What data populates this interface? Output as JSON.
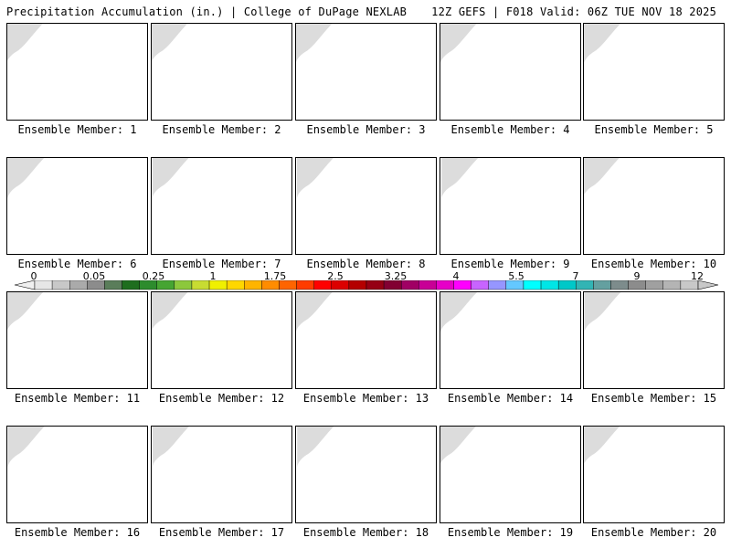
{
  "header": {
    "title_left": "Precipitation Accumulation (in.) | College of DuPage NEXLAB",
    "title_right": "12Z GEFS | F018 Valid: 06Z TUE NOV 18 2025"
  },
  "colors": {
    "land": "#ffffff",
    "grey_light": "#dcdcdc",
    "grey_mid": "#b4b4b4",
    "grey_dark": "#8c8c8c",
    "green_dark": "#1e7d1e",
    "green": "#46a532",
    "green_light": "#8cc83c",
    "yellow": "#f0f000",
    "borders": "#000000"
  },
  "colorbar": {
    "ticks": [
      "0",
      "0.05",
      "0.25",
      "1",
      "1.75",
      "2.5",
      "3.25",
      "4",
      "5.5",
      "7",
      "9",
      "12"
    ],
    "bins": [
      "#e6e6e6",
      "#c8c8c8",
      "#aaaaaa",
      "#8c8c8c",
      "#5a7d5a",
      "#1e6e1e",
      "#2d8c2d",
      "#46a532",
      "#8cc83c",
      "#c8dc32",
      "#f0f000",
      "#ffd700",
      "#ffb400",
      "#ff8c00",
      "#ff6400",
      "#ff3c00",
      "#ff0000",
      "#dc0000",
      "#b40000",
      "#960014",
      "#820032",
      "#a00064",
      "#c80096",
      "#e600c8",
      "#ff00ff",
      "#c864ff",
      "#9696ff",
      "#64c8ff",
      "#00ffff",
      "#00e6e6",
      "#00c8c8",
      "#32b4b4",
      "#64a0a0",
      "#7d8c8c",
      "#8c8c8c",
      "#a0a0a0",
      "#b4b4b4",
      "#c8c8c8"
    ]
  },
  "panels": [
    {
      "label": "Ensemble Member: 1"
    },
    {
      "label": "Ensemble Member: 2"
    },
    {
      "label": "Ensemble Member: 3"
    },
    {
      "label": "Ensemble Member: 4"
    },
    {
      "label": "Ensemble Member: 5"
    },
    {
      "label": "Ensemble Member: 6"
    },
    {
      "label": "Ensemble Member: 7"
    },
    {
      "label": "Ensemble Member: 8"
    },
    {
      "label": "Ensemble Member: 9"
    },
    {
      "label": "Ensemble Member: 10"
    },
    {
      "label": "Ensemble Member: 11"
    },
    {
      "label": "Ensemble Member: 12"
    },
    {
      "label": "Ensemble Member: 13"
    },
    {
      "label": "Ensemble Member: 14"
    },
    {
      "label": "Ensemble Member: 15"
    },
    {
      "label": "Ensemble Member: 16"
    },
    {
      "label": "Ensemble Member: 17"
    },
    {
      "label": "Ensemble Member: 18"
    },
    {
      "label": "Ensemble Member: 19"
    },
    {
      "label": "Ensemble Member: 20"
    }
  ]
}
